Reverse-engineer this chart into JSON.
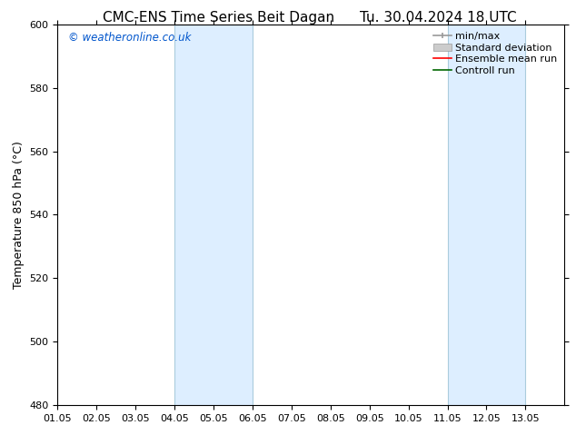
{
  "title_left": "CMC-ENS Time Series Beit Dagan",
  "title_right": "Tu. 30.04.2024 18 UTC",
  "ylabel": "Temperature 850 hPa (°C)",
  "watermark": "© weatheronline.co.uk",
  "watermark_color": "#0055cc",
  "xlim_min": 0,
  "xlim_max": 13,
  "ylim_min": 480,
  "ylim_max": 600,
  "yticks": [
    480,
    500,
    520,
    540,
    560,
    580,
    600
  ],
  "xtick_labels": [
    "01.05",
    "02.05",
    "03.05",
    "04.05",
    "05.05",
    "06.05",
    "07.05",
    "08.05",
    "09.05",
    "10.05",
    "11.05",
    "12.05",
    "13.05"
  ],
  "shaded_bands": [
    {
      "xmin": 3.0,
      "xmax": 5.0
    },
    {
      "xmin": 10.0,
      "xmax": 12.0
    }
  ],
  "shade_color": "#ddeeff",
  "shade_edge_color": "#aaccdd",
  "background_color": "#ffffff",
  "legend_entries": [
    {
      "label": "min/max",
      "color": "#999999",
      "lw": 1.2,
      "style": "minmax"
    },
    {
      "label": "Standard deviation",
      "color": "#cccccc",
      "lw": 5,
      "style": "band"
    },
    {
      "label": "Ensemble mean run",
      "color": "#ff0000",
      "lw": 1.2,
      "style": "line"
    },
    {
      "label": "Controll run",
      "color": "#006600",
      "lw": 1.2,
      "style": "line"
    }
  ],
  "title_fontsize": 11,
  "axis_label_fontsize": 9,
  "tick_fontsize": 8,
  "legend_fontsize": 8
}
